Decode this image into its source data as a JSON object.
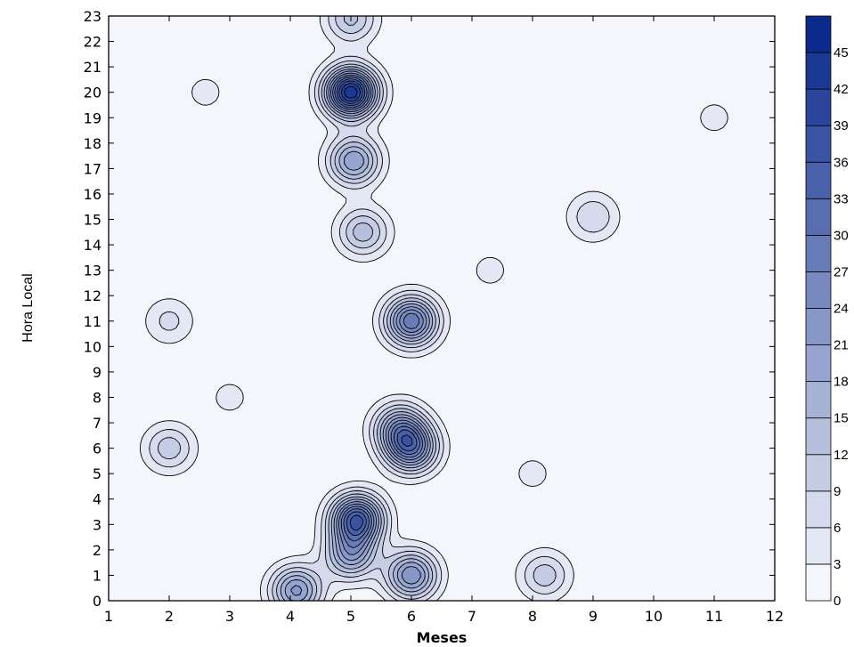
{
  "chart_data": {
    "type": "heatmap",
    "title": "",
    "xlabel": "Meses",
    "ylabel": "Hora Local",
    "x_ticks": [
      1,
      2,
      3,
      4,
      5,
      6,
      7,
      8,
      9,
      10,
      11,
      12
    ],
    "y_ticks": [
      0,
      1,
      2,
      3,
      4,
      5,
      6,
      7,
      8,
      9,
      10,
      11,
      12,
      13,
      14,
      15,
      16,
      17,
      18,
      19,
      20,
      21,
      22,
      23
    ],
    "xlim": [
      1,
      12
    ],
    "ylim": [
      0,
      23
    ],
    "colorbar": {
      "levels": [
        0,
        3,
        6,
        9,
        12,
        15,
        18,
        21,
        24,
        27,
        30,
        33,
        36,
        39,
        42,
        45,
        48
      ],
      "labels": [
        "0",
        "3",
        "6",
        "9",
        "12",
        "15",
        "18",
        "21",
        "24",
        "27",
        "30",
        "33",
        "36",
        "39",
        "42",
        "45"
      ],
      "color_low": "#f4f6fb",
      "color_high": "#0b2a8c"
    },
    "peaks": [
      {
        "x": 5.0,
        "y": 20.0,
        "value": 45
      },
      {
        "x": 5.05,
        "y": 17.3,
        "value": 21
      },
      {
        "x": 5.2,
        "y": 14.5,
        "value": 14
      },
      {
        "x": 6.0,
        "y": 11.0,
        "value": 30
      },
      {
        "x": 5.8,
        "y": 6.8,
        "value": 20
      },
      {
        "x": 6.0,
        "y": 6.0,
        "value": 27
      },
      {
        "x": 5.1,
        "y": 3.2,
        "value": 36
      },
      {
        "x": 5.0,
        "y": 1.8,
        "value": 20
      },
      {
        "x": 6.0,
        "y": 1.0,
        "value": 24
      },
      {
        "x": 4.1,
        "y": 0.4,
        "value": 22
      },
      {
        "x": 5.0,
        "y": 22.9,
        "value": 13
      },
      {
        "x": 2.0,
        "y": 6.0,
        "value": 11
      },
      {
        "x": 2.0,
        "y": 11.0,
        "value": 7
      },
      {
        "x": 2.1,
        "y": 0.4,
        "value": 3
      },
      {
        "x": 9.0,
        "y": 15.1,
        "value": 9
      },
      {
        "x": 8.2,
        "y": 1.0,
        "value": 11
      },
      {
        "x": 3.0,
        "y": 8.0,
        "value": 4
      },
      {
        "x": 2.6,
        "y": 20.0,
        "value": 4
      },
      {
        "x": 7.3,
        "y": 13.0,
        "value": 4
      },
      {
        "x": 11.0,
        "y": 19.0,
        "value": 4
      },
      {
        "x": 8.0,
        "y": 5.0,
        "value": 4
      }
    ]
  }
}
